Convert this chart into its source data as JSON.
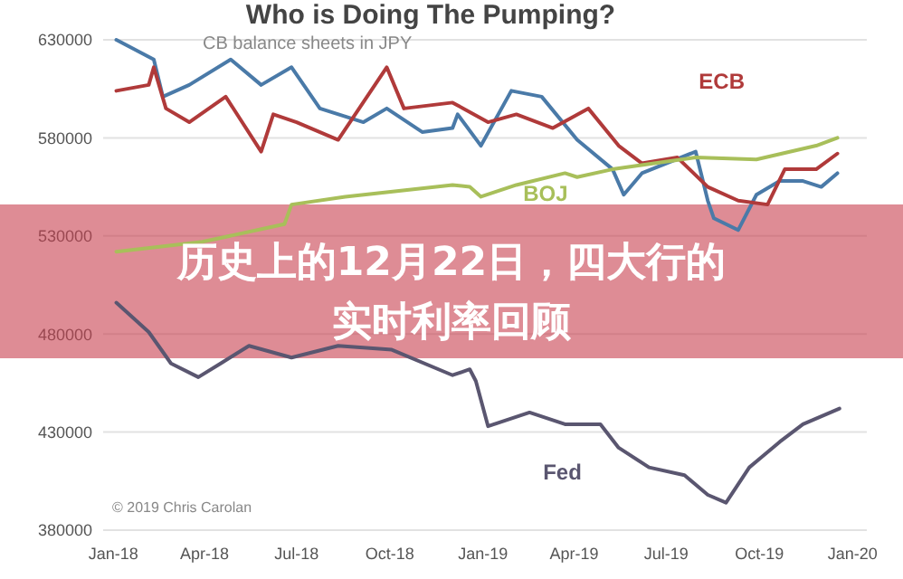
{
  "chart_data": {
    "type": "line",
    "title": "Who is Doing The Pumping?",
    "subtitle": "CB balance sheets in JPY",
    "xlim": [
      "2017-12-22",
      "2020-01-15"
    ],
    "xticks": [
      {
        "value": "2018-01-01",
        "label": "Jan-18"
      },
      {
        "value": "2018-04-01",
        "label": "Apr-18"
      },
      {
        "value": "2018-07-01",
        "label": "Jul-18"
      },
      {
        "value": "2018-10-01",
        "label": "Oct-18"
      },
      {
        "value": "2019-01-01",
        "label": "Jan-19"
      },
      {
        "value": "2019-04-01",
        "label": "Apr-19"
      },
      {
        "value": "2019-07-01",
        "label": "Jul-19"
      },
      {
        "value": "2019-10-01",
        "label": "Oct-19"
      },
      {
        "value": "2020-01-01",
        "label": "Jan-20"
      }
    ],
    "ylim": [
      380000,
      630000
    ],
    "yticks": [
      380000,
      430000,
      480000,
      530000,
      580000,
      630000
    ],
    "grid": "y",
    "legend": false,
    "marker": "none",
    "line_style": "solid",
    "series": [
      {
        "color": "#4a7aa8",
        "x": [
          "2018-01-04",
          "2018-02-10",
          "2018-02-19",
          "2018-03-17",
          "2018-04-27",
          "2018-05-27",
          "2018-06-26",
          "2018-07-24",
          "2018-09-05",
          "2018-09-28",
          "2018-11-02",
          "2018-12-02",
          "2018-12-07",
          "2018-12-30",
          "2019-01-29",
          "2019-02-28",
          "2019-04-04",
          "2019-05-09",
          "2019-05-20",
          "2019-06-07",
          "2019-07-30",
          "2019-08-11",
          "2019-08-17",
          "2019-09-10",
          "2019-09-28",
          "2019-10-21",
          "2019-11-13",
          "2019-12-01",
          "2019-12-17"
        ],
        "values": [
          630000,
          620000,
          601000,
          607000,
          620000,
          607000,
          616000,
          595000,
          588000,
          595000,
          583000,
          585000,
          592000,
          576000,
          604000,
          601000,
          579000,
          564000,
          551000,
          562000,
          573000,
          548000,
          539000,
          533000,
          551000,
          558000,
          558000,
          555000,
          562000
        ]
      },
      {
        "name": "ECB",
        "color": "#b03a3a",
        "x": [
          "2018-01-04",
          "2018-02-05",
          "2018-02-10",
          "2018-02-22",
          "2018-03-17",
          "2018-04-22",
          "2018-05-27",
          "2018-06-08",
          "2018-07-01",
          "2018-08-11",
          "2018-09-28",
          "2018-10-15",
          "2018-12-02",
          "2019-01-06",
          "2019-02-03",
          "2019-03-11",
          "2019-04-15",
          "2019-05-15",
          "2019-06-07",
          "2019-07-12",
          "2019-08-11",
          "2019-09-10",
          "2019-10-09",
          "2019-10-26",
          "2019-11-26",
          "2019-12-17"
        ],
        "values": [
          604000,
          607000,
          616000,
          595000,
          588000,
          601000,
          573000,
          592000,
          588000,
          579000,
          616000,
          595000,
          598000,
          588000,
          592000,
          585000,
          595000,
          576000,
          567000,
          570000,
          555000,
          548000,
          546000,
          564000,
          564000,
          572000
        ]
      },
      {
        "name": "BOJ",
        "color": "#a8bf5a",
        "x": [
          "2018-01-04",
          "2018-03-30",
          "2018-06-19",
          "2018-06-26",
          "2018-08-18",
          "2018-12-02",
          "2018-12-19",
          "2018-12-30",
          "2019-02-03",
          "2019-03-23",
          "2019-04-04",
          "2019-05-09",
          "2019-06-19",
          "2019-07-30",
          "2019-09-28",
          "2019-11-26",
          "2019-12-17"
        ],
        "values": [
          522000,
          527000,
          536000,
          546000,
          550000,
          556000,
          555000,
          550000,
          556000,
          562000,
          560000,
          564000,
          567000,
          570000,
          569000,
          576000,
          580000
        ]
      },
      {
        "name": "Fed",
        "color": "#5a5670",
        "x": [
          "2018-01-04",
          "2018-02-05",
          "2018-02-27",
          "2018-03-26",
          "2018-04-17",
          "2018-05-15",
          "2018-06-26",
          "2018-08-11",
          "2018-10-03",
          "2018-12-02",
          "2018-12-19",
          "2018-12-25",
          "2019-01-06",
          "2019-02-16",
          "2019-03-23",
          "2019-04-27",
          "2019-05-15",
          "2019-06-14",
          "2019-07-19",
          "2019-08-11",
          "2019-08-29",
          "2019-09-21",
          "2019-10-21",
          "2019-11-13",
          "2019-12-19"
        ],
        "values": [
          496000,
          481000,
          465000,
          458000,
          465000,
          474000,
          468000,
          474000,
          472000,
          459000,
          462000,
          456000,
          433000,
          440000,
          434000,
          434000,
          422000,
          412000,
          408000,
          398000,
          394000,
          412000,
          425000,
          434000,
          442000
        ]
      }
    ],
    "annotations": [
      "© 2019 Chris Carolan",
      "历史上的12月22日，四大行的实时利率回顾"
    ]
  }
}
